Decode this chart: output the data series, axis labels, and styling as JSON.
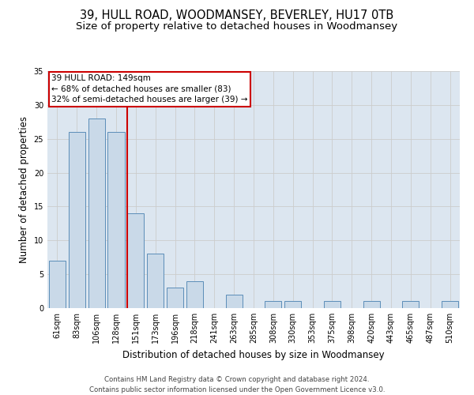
{
  "title1": "39, HULL ROAD, WOODMANSEY, BEVERLEY, HU17 0TB",
  "title2": "Size of property relative to detached houses in Woodmansey",
  "xlabel": "Distribution of detached houses by size in Woodmansey",
  "ylabel": "Number of detached properties",
  "categories": [
    "61sqm",
    "83sqm",
    "106sqm",
    "128sqm",
    "151sqm",
    "173sqm",
    "196sqm",
    "218sqm",
    "241sqm",
    "263sqm",
    "285sqm",
    "308sqm",
    "330sqm",
    "353sqm",
    "375sqm",
    "398sqm",
    "420sqm",
    "443sqm",
    "465sqm",
    "487sqm",
    "510sqm"
  ],
  "values": [
    7,
    26,
    28,
    26,
    14,
    8,
    3,
    4,
    0,
    2,
    0,
    1,
    1,
    0,
    1,
    0,
    1,
    0,
    1,
    0,
    1
  ],
  "bar_color": "#c9d9e8",
  "bar_edge_color": "#5b8db8",
  "vline_color": "#cc0000",
  "annotation_text": "39 HULL ROAD: 149sqm\n← 68% of detached houses are smaller (83)\n32% of semi-detached houses are larger (39) →",
  "annotation_box_color": "#cc0000",
  "ylim": [
    0,
    35
  ],
  "yticks": [
    0,
    5,
    10,
    15,
    20,
    25,
    30,
    35
  ],
  "grid_color": "#cccccc",
  "plot_bg_color": "#dce6f0",
  "background_color": "#ffffff",
  "footer1": "Contains HM Land Registry data © Crown copyright and database right 2024.",
  "footer2": "Contains public sector information licensed under the Open Government Licence v3.0.",
  "title_fontsize": 10.5,
  "subtitle_fontsize": 9.5,
  "tick_fontsize": 7,
  "ylabel_fontsize": 8.5,
  "xlabel_fontsize": 8.5,
  "annotation_fontsize": 7.5,
  "footer_fontsize": 6.2
}
